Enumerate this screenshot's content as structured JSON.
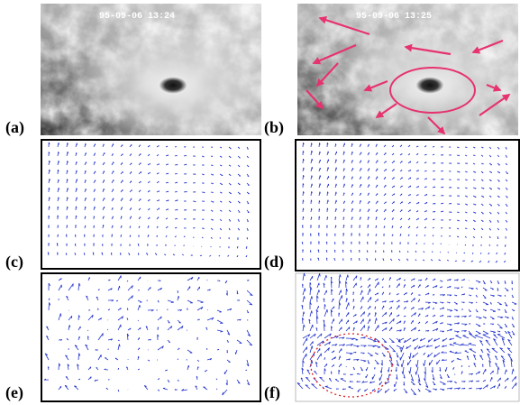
{
  "panels": [
    {
      "label": "(a)",
      "timestamp": "95-09-06 13:24"
    },
    {
      "label": "(b)",
      "timestamp": "95-09-06 13:25"
    },
    {
      "label": "(c)"
    },
    {
      "label": "(d)"
    },
    {
      "label": "(e)"
    },
    {
      "label": "(f)"
    }
  ]
}
